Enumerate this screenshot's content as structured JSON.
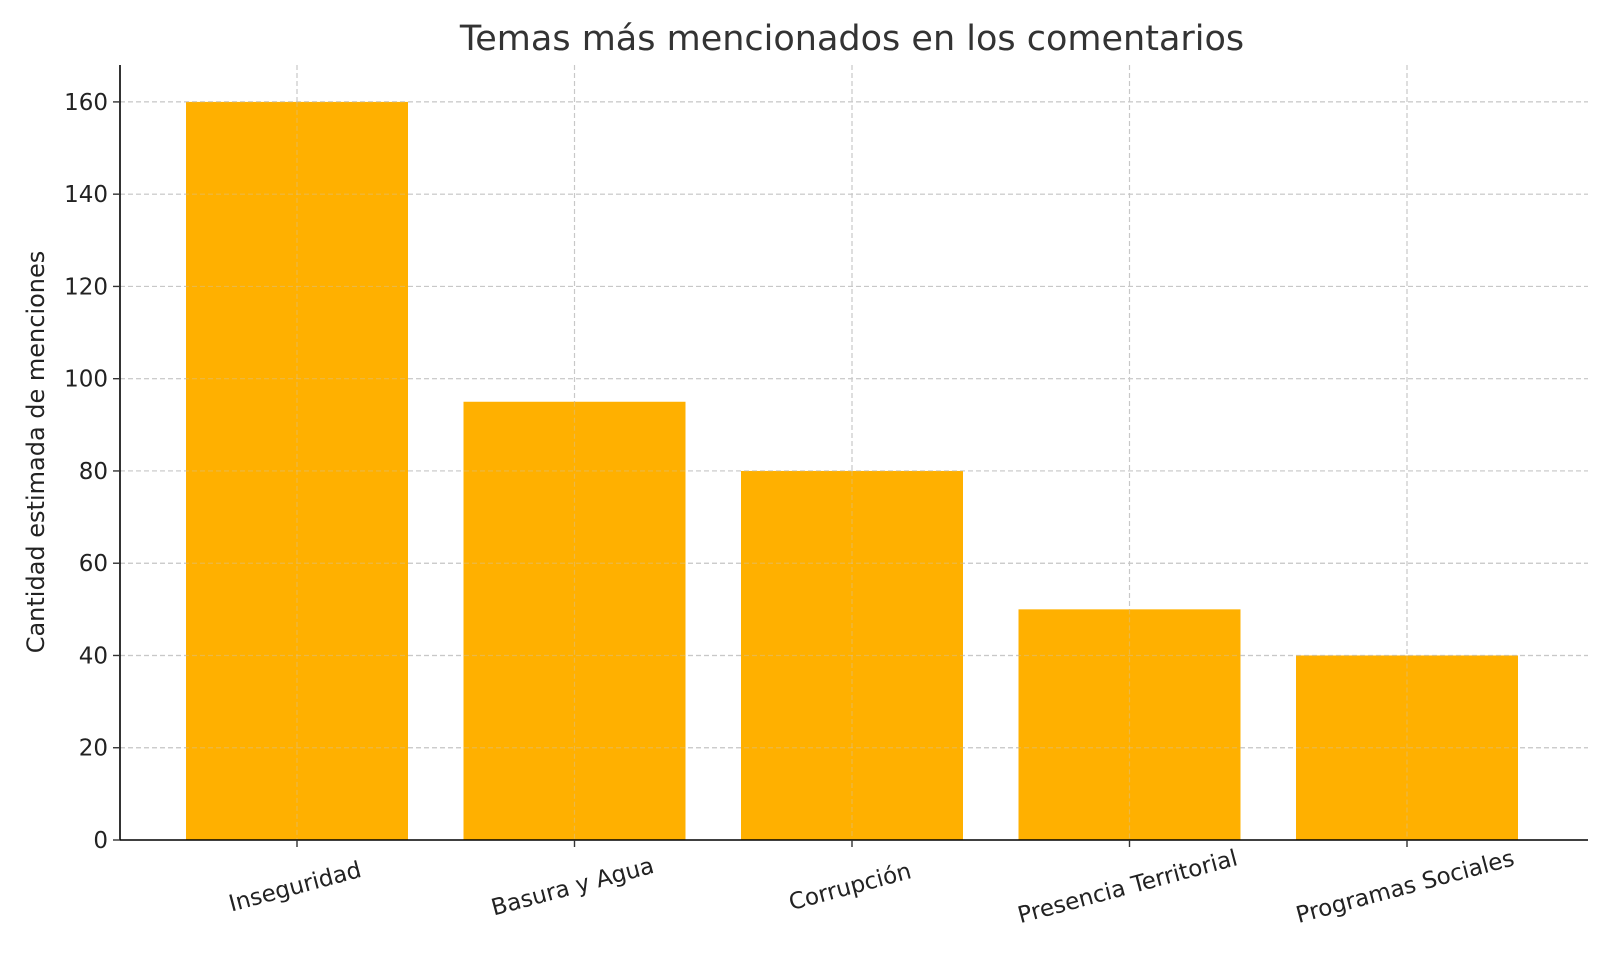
{
  "chart_data": {
    "type": "bar",
    "title": "Temas más mencionados en los comentarios",
    "xlabel": "",
    "ylabel": "Cantidad estimada de menciones",
    "categories": [
      "Inseguridad",
      "Basura y Agua",
      "Corrupción",
      "Presencia Territorial",
      "Programas Sociales"
    ],
    "values": [
      160,
      95,
      80,
      50,
      40
    ],
    "ylim": [
      0,
      168
    ],
    "yticks": [
      0,
      20,
      40,
      60,
      80,
      100,
      120,
      140,
      160
    ],
    "bar_color": "#FFB000",
    "grid": true,
    "category_label_rotation": "rotated about 15 degrees counter-clockwise"
  }
}
